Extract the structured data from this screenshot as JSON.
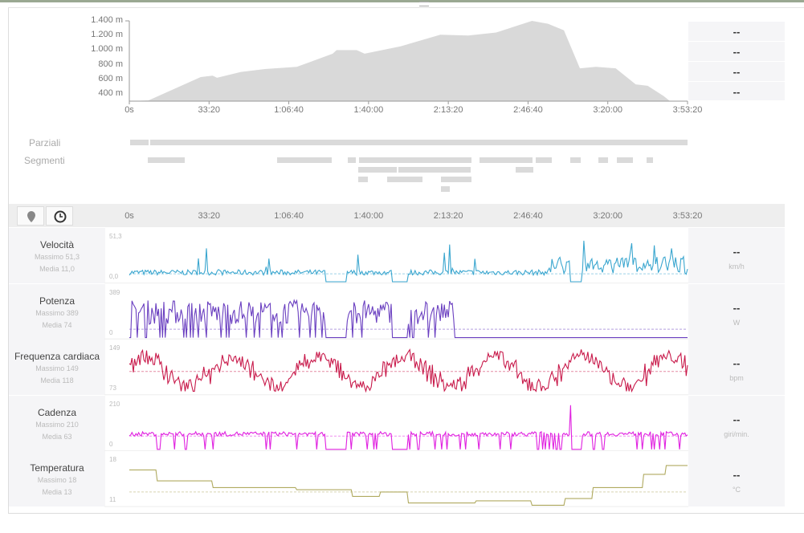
{
  "elevation": {
    "y_ticks": [
      "1.400 m",
      "1.200 m",
      "1.000 m",
      "800 m",
      "600 m",
      "400 m"
    ],
    "profile_s_m": [
      [
        0,
        300
      ],
      [
        480,
        310
      ],
      [
        1790,
        630
      ],
      [
        2090,
        650
      ],
      [
        2200,
        620
      ],
      [
        2800,
        700
      ],
      [
        3400,
        740
      ],
      [
        4200,
        770
      ],
      [
        5100,
        950
      ],
      [
        5200,
        1000
      ],
      [
        5700,
        1000
      ],
      [
        5900,
        950
      ],
      [
        6800,
        1050
      ],
      [
        7800,
        1210
      ],
      [
        8500,
        1200
      ],
      [
        9200,
        1240
      ],
      [
        10100,
        1400
      ],
      [
        10500,
        1360
      ],
      [
        10900,
        1270
      ],
      [
        11300,
        750
      ],
      [
        11700,
        770
      ],
      [
        12200,
        750
      ],
      [
        12700,
        530
      ],
      [
        13000,
        510
      ],
      [
        13400,
        370
      ],
      [
        13560,
        300
      ]
    ],
    "right_values": [
      "--",
      "--",
      "--",
      "--"
    ]
  },
  "x_ticks": [
    "0s",
    "33:20",
    "1:06:40",
    "1:40:00",
    "2:13:20",
    "2:46:40",
    "3:20:00",
    "3:53:20"
  ],
  "laps": {
    "parziali_label": "Parziali",
    "segmenti_label": "Segmenti"
  },
  "toolbar": {
    "pin_icon": "map-pin-icon",
    "clock_icon": "clock-icon"
  },
  "metrics": [
    {
      "name": "Velocità",
      "max": "Massimo 51,3",
      "avg": "Media 11,0",
      "top": "51,3",
      "bottom": "0,0",
      "value": "--",
      "unit": "km/h",
      "color": "#3aa6cf"
    },
    {
      "name": "Potenza",
      "max": "Massimo 389",
      "avg": "Media 74",
      "top": "389",
      "bottom": "0",
      "value": "--",
      "unit": "W",
      "color": "#6a3fc0"
    },
    {
      "name": "Frequenza cardiaca",
      "max": "Massimo 149",
      "avg": "Media 118",
      "top": "149",
      "bottom": "73",
      "value": "--",
      "unit": "bpm",
      "color": "#c8194a"
    },
    {
      "name": "Cadenza",
      "max": "Massimo 210",
      "avg": "Media 63",
      "top": "210",
      "bottom": "0",
      "value": "--",
      "unit": "giri/min.",
      "color": "#e020e0"
    },
    {
      "name": "Temperatura",
      "max": "Massimo 18",
      "avg": "Media 13",
      "top": "18",
      "bottom": "11",
      "value": "--",
      "unit": "°C",
      "color": "#b0aa60"
    }
  ]
}
